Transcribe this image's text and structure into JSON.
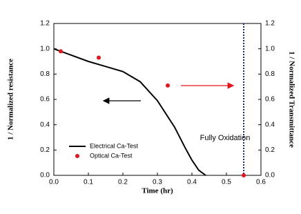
{
  "chart_data": {
    "type": "line",
    "xlabel": "Time (hr)",
    "ylabel": "1 / Normalized resistance",
    "y2label": "1 / Normalized Transmittance",
    "annotation": "Fully Oxidation",
    "legend": "lower left",
    "xlim": [
      0,
      0.6
    ],
    "xticks": [
      {
        "value": 0,
        "label": "0.0"
      },
      0.1,
      0.2,
      0.3,
      0.4,
      0.5,
      0.6
    ],
    "ylim": [
      0,
      1.2
    ],
    "yticks": [
      {
        "value": 0,
        "label": "0.0"
      },
      0.2,
      0.4,
      0.6,
      0.8,
      {
        "value": 1,
        "label": "1.0"
      },
      1.2
    ],
    "y2lim": [
      0,
      1.2
    ],
    "y2ticks": [
      {
        "value": 0,
        "label": "0.0"
      },
      0.2,
      0.4,
      0.6,
      0.8,
      {
        "value": 1,
        "label": "1.0"
      },
      1.2
    ],
    "vline": 0.55,
    "series": [
      {
        "name": "Electrical Ca-Test",
        "color": "#000000",
        "mode": "line",
        "x": [
          0,
          0.05,
          0.1,
          0.15,
          0.2,
          0.25,
          0.3,
          0.35,
          0.38,
          0.4,
          0.42,
          0.44
        ],
        "values": [
          1.0,
          0.95,
          0.9,
          0.86,
          0.82,
          0.74,
          0.59,
          0.38,
          0.22,
          0.12,
          0.04,
          0.0
        ]
      },
      {
        "name": "Optical Ca-Test",
        "color": "#e8141c",
        "mode": "markers",
        "axis": "y2",
        "x": [
          0.02,
          0.13,
          0.33,
          0.55
        ],
        "values": [
          0.98,
          0.93,
          0.71,
          0.0
        ]
      }
    ]
  }
}
